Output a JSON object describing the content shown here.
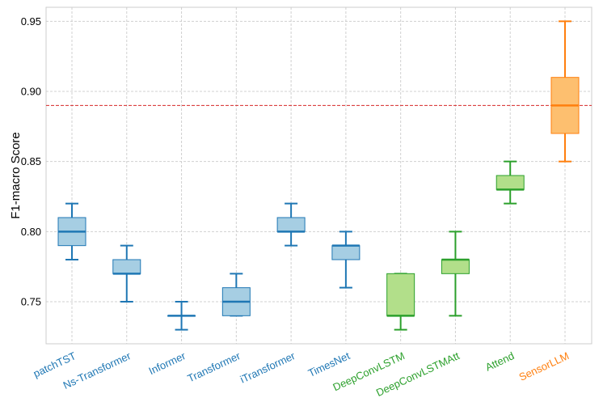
{
  "chart_data": {
    "type": "box",
    "title": "",
    "xlabel": "",
    "ylabel": "F1-macro Score",
    "ylim": [
      0.72,
      0.96
    ],
    "yticks": [
      "0.75",
      "0.80",
      "0.85",
      "0.90",
      "0.95"
    ],
    "ytick_values": [
      0.75,
      0.8,
      0.85,
      0.9,
      0.95
    ],
    "grid": true,
    "reference_line": {
      "y": 0.89,
      "color": "#d62728",
      "style": "dashed"
    },
    "colors": {
      "blue_edge": "#1f77b4",
      "blue_fill": "#a6cee3",
      "green_edge": "#2ca02c",
      "green_fill": "#b2df8a",
      "orange_edge": "#ff7f0e",
      "orange_fill": "#fdbf6f"
    },
    "boxes": [
      {
        "label": "patchTST",
        "group": "blue",
        "whisker_low": 0.78,
        "q1": 0.79,
        "median": 0.8,
        "q3": 0.81,
        "whisker_high": 0.82
      },
      {
        "label": "Ns-Transformer",
        "group": "blue",
        "whisker_low": 0.75,
        "q1": 0.77,
        "median": 0.77,
        "q3": 0.78,
        "whisker_high": 0.79
      },
      {
        "label": "Informer",
        "group": "blue",
        "whisker_low": 0.73,
        "q1": 0.74,
        "median": 0.74,
        "q3": 0.74,
        "whisker_high": 0.75
      },
      {
        "label": "Transformer",
        "group": "blue",
        "whisker_low": 0.74,
        "q1": 0.74,
        "median": 0.75,
        "q3": 0.76,
        "whisker_high": 0.77
      },
      {
        "label": "iTransformer",
        "group": "blue",
        "whisker_low": 0.79,
        "q1": 0.8,
        "median": 0.8,
        "q3": 0.81,
        "whisker_high": 0.82
      },
      {
        "label": "TimesNet",
        "group": "blue",
        "whisker_low": 0.76,
        "q1": 0.78,
        "median": 0.79,
        "q3": 0.79,
        "whisker_high": 0.8
      },
      {
        "label": "DeepConvLSTM",
        "group": "green",
        "whisker_low": 0.73,
        "q1": 0.74,
        "median": 0.74,
        "q3": 0.77,
        "whisker_high": 0.77
      },
      {
        "label": "DeepConvLSTMAtt",
        "group": "green",
        "whisker_low": 0.74,
        "q1": 0.77,
        "median": 0.78,
        "q3": 0.78,
        "whisker_high": 0.8
      },
      {
        "label": "Attend",
        "group": "green",
        "whisker_low": 0.82,
        "q1": 0.83,
        "median": 0.83,
        "q3": 0.84,
        "whisker_high": 0.85
      },
      {
        "label": "SensorLLM",
        "group": "orange",
        "whisker_low": 0.85,
        "q1": 0.87,
        "median": 0.89,
        "q3": 0.91,
        "whisker_high": 0.95
      }
    ]
  }
}
